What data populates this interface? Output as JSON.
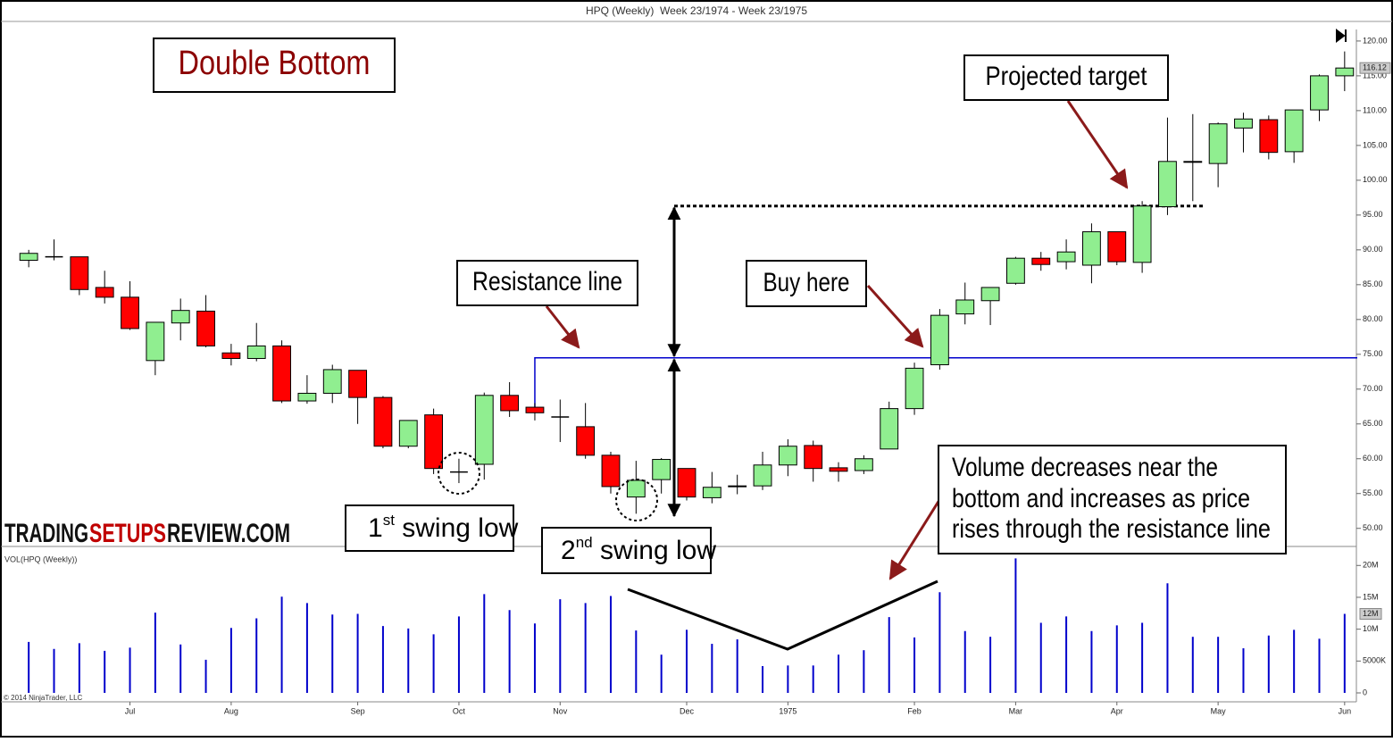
{
  "chart_data": {
    "type": "candlestick",
    "title": "HPQ (Weekly)  Week 23/1974 - Week 23/1975",
    "categories": [
      null,
      null,
      null,
      null,
      "Jul",
      null,
      null,
      null,
      "Aug",
      null,
      null,
      null,
      null,
      "Sep",
      null,
      null,
      null,
      "Oct",
      null,
      null,
      null,
      "Nov",
      null,
      null,
      null,
      null,
      "Dec",
      null,
      null,
      null,
      "1975",
      null,
      null,
      null,
      null,
      "Feb",
      null,
      null,
      null,
      "Mar",
      null,
      null,
      null,
      "Apr",
      null,
      null,
      null,
      "May",
      null,
      null,
      null,
      null,
      "Jun"
    ],
    "open": [
      88.5,
      89,
      89,
      84.6,
      83.2,
      74.1,
      79.5,
      81.2,
      75.2,
      74.4,
      76.2,
      68.3,
      69.4,
      72.7,
      68.8,
      61.8,
      66.3,
      58.1,
      59.2,
      69.1,
      67.4,
      66,
      64.6,
      60.5,
      54.5,
      57,
      58.6,
      54.4,
      56,
      56.1,
      59.1,
      61.9,
      58.7,
      58.3,
      61.4,
      67.2,
      73.5,
      80.8,
      82.7,
      85.2,
      88.8,
      88.3,
      87.8,
      92.6,
      88.2,
      96.2,
      102.6,
      102.4,
      107.5,
      108.7,
      104.1,
      110.1,
      115
    ],
    "high": [
      90,
      91.5,
      89,
      87,
      85.5,
      79.6,
      83,
      83.5,
      76.5,
      79.5,
      77,
      72,
      73.5,
      72.7,
      69,
      65.5,
      67.2,
      60,
      69.5,
      71,
      68,
      68.5,
      68,
      61,
      59.7,
      60.1,
      58.6,
      58.1,
      57.7,
      61,
      62.8,
      62.6,
      59.5,
      60.5,
      68.2,
      73.8,
      81.5,
      85.3,
      84.6,
      89,
      89.7,
      91.5,
      93.8,
      92.6,
      97,
      109,
      109.5,
      108.3,
      109.7,
      109.3,
      110.1,
      115.2,
      118.5
    ],
    "low": [
      87.5,
      88.5,
      83.5,
      82.3,
      78.5,
      72,
      77,
      76,
      73.4,
      74,
      68,
      67.9,
      68,
      65,
      61.5,
      61.5,
      57.8,
      56.5,
      57,
      66,
      65.5,
      62.4,
      60,
      55,
      52.1,
      55,
      54,
      53.6,
      54.9,
      55.5,
      57.5,
      56.7,
      56.7,
      57.8,
      61.4,
      66.3,
      72.8,
      79.3,
      79.2,
      85,
      87,
      87.2,
      85.2,
      87.8,
      86.7,
      95,
      97,
      99,
      104,
      103,
      102.5,
      108.5,
      112.8
    ],
    "close": [
      89.5,
      89,
      84.3,
      83.2,
      78.7,
      79.6,
      81.3,
      76.2,
      74.4,
      76.2,
      68.3,
      69.4,
      72.8,
      68.8,
      61.8,
      65.5,
      58.6,
      58.1,
      69.1,
      66.9,
      66.6,
      66,
      60.5,
      56,
      56.9,
      59.9,
      54.5,
      55.9,
      56.1,
      59.1,
      61.8,
      58.6,
      58.2,
      60,
      67.2,
      73,
      80.6,
      82.8,
      84.6,
      88.8,
      87.9,
      89.7,
      92.6,
      88.3,
      96.3,
      102.7,
      102.7,
      108.1,
      108.8,
      104,
      110.1,
      115,
      116.12
    ],
    "up_color": "#90ee90",
    "down_color": "#ff0000",
    "ylim": [
      47.4,
      121.4
    ],
    "yticks": [
      {
        "value": 50,
        "label": "50.00"
      },
      {
        "value": 55,
        "label": "55.00"
      },
      {
        "value": 60,
        "label": "60.00"
      },
      {
        "value": 65,
        "label": "65.00"
      },
      {
        "value": 70,
        "label": "70.00"
      },
      {
        "value": 75,
        "label": "75.00"
      },
      {
        "value": 80,
        "label": "80.00"
      },
      {
        "value": 85,
        "label": "85.00"
      },
      {
        "value": 90,
        "label": "90.00"
      },
      {
        "value": 95,
        "label": "95.00"
      },
      {
        "value": 100,
        "label": "100.00"
      },
      {
        "value": 105,
        "label": "105.00"
      },
      {
        "value": 110,
        "label": "110.00"
      },
      {
        "value": 115,
        "label": "115.00"
      },
      {
        "value": 120,
        "label": "120.00"
      }
    ],
    "last_price": 116.12,
    "volume_title": "VOL(HPQ (Weekly))",
    "volume": [
      8,
      6.9,
      7.8,
      6.6,
      7.1,
      12.6,
      7.6,
      5.2,
      10.2,
      11.7,
      15.1,
      14.1,
      12.3,
      12.4,
      10.5,
      10.1,
      9.2,
      12,
      15.5,
      13,
      10.9,
      14.7,
      14.1,
      15.2,
      9.8,
      6,
      9.9,
      7.7,
      8.4,
      4.2,
      4.3,
      4.3,
      6,
      6.7,
      11.9,
      8.7,
      15.8,
      9.7,
      8.8,
      21.1,
      11,
      12,
      9.7,
      10.6,
      11,
      17.2,
      8.8,
      8.8,
      7,
      9,
      9.9,
      8.5,
      12.4
    ],
    "volume_color": "#0000cc",
    "y2lim": [
      0,
      22
    ],
    "y2ticks": [
      0,
      {
        "value": 5,
        "label": "5000K"
      },
      {
        "value": 10,
        "label": "10M"
      },
      {
        "value": 15,
        "label": "15M"
      },
      {
        "value": 20,
        "label": "20M"
      }
    ],
    "last_volume": {
      "value": 12.4,
      "label": "12M"
    },
    "resistance": 74.5,
    "target": 96.3,
    "move_bottom": 51.8,
    "annotations": {
      "pattern": "Double Bottom",
      "resistance_line": "Resistance line",
      "buy": "Buy here",
      "target": "Projected target",
      "first_low": {
        "num": "1",
        "sup": "st",
        "text": " swing low"
      },
      "second_low": {
        "num": "2",
        "sup": "nd",
        "text": " swing low"
      },
      "volume_note": [
        "Volume decreases near the",
        "bottom and increases as price",
        "rises through the resistance line"
      ]
    },
    "watermark": [
      "TRADING",
      "SETUPS",
      "REVIEW.COM"
    ],
    "copyright": "© 2014 NinjaTrader, LLC"
  }
}
